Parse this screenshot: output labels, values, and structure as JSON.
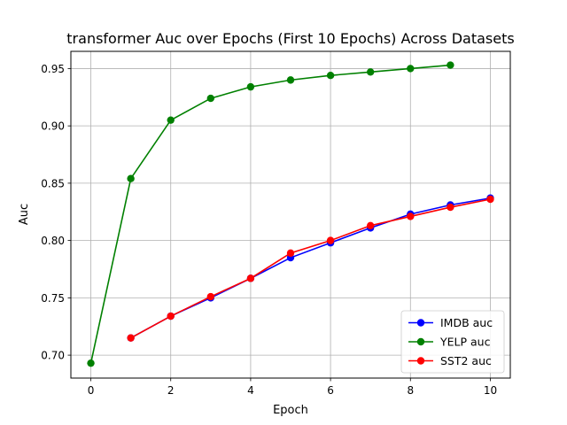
{
  "chart_data": {
    "type": "line",
    "title": "transformer Auc over Epochs (First 10 Epochs) Across Datasets",
    "xlabel": "Epoch",
    "ylabel": "Auc",
    "xlim": [
      -0.5,
      10.5
    ],
    "ylim": [
      0.68,
      0.965
    ],
    "xticks": [
      0,
      2,
      4,
      6,
      8,
      10
    ],
    "xtick_labels": [
      "0",
      "2",
      "4",
      "6",
      "8",
      "10"
    ],
    "yticks": [
      0.7,
      0.75,
      0.8,
      0.85,
      0.9,
      0.95
    ],
    "ytick_labels": [
      "0.70",
      "0.75",
      "0.80",
      "0.85",
      "0.90",
      "0.95"
    ],
    "grid": true,
    "legend_position": "lower-right",
    "series": [
      {
        "name": "IMDB auc",
        "color": "#0000ff",
        "x": [
          1,
          2,
          3,
          4,
          5,
          6,
          7,
          8,
          9,
          10
        ],
        "values": [
          0.715,
          0.734,
          0.75,
          0.767,
          0.785,
          0.798,
          0.811,
          0.823,
          0.831,
          0.837
        ]
      },
      {
        "name": "YELP auc",
        "color": "#008000",
        "x": [
          0,
          1,
          2,
          3,
          4,
          5,
          6,
          7,
          8,
          9
        ],
        "values": [
          0.693,
          0.854,
          0.905,
          0.924,
          0.934,
          0.94,
          0.944,
          0.947,
          0.95,
          0.953
        ]
      },
      {
        "name": "SST2 auc",
        "color": "#ff0000",
        "x": [
          1,
          2,
          3,
          4,
          5,
          6,
          7,
          8,
          9,
          10
        ],
        "values": [
          0.715,
          0.734,
          0.751,
          0.767,
          0.789,
          0.8,
          0.813,
          0.821,
          0.829,
          0.836
        ]
      }
    ]
  }
}
